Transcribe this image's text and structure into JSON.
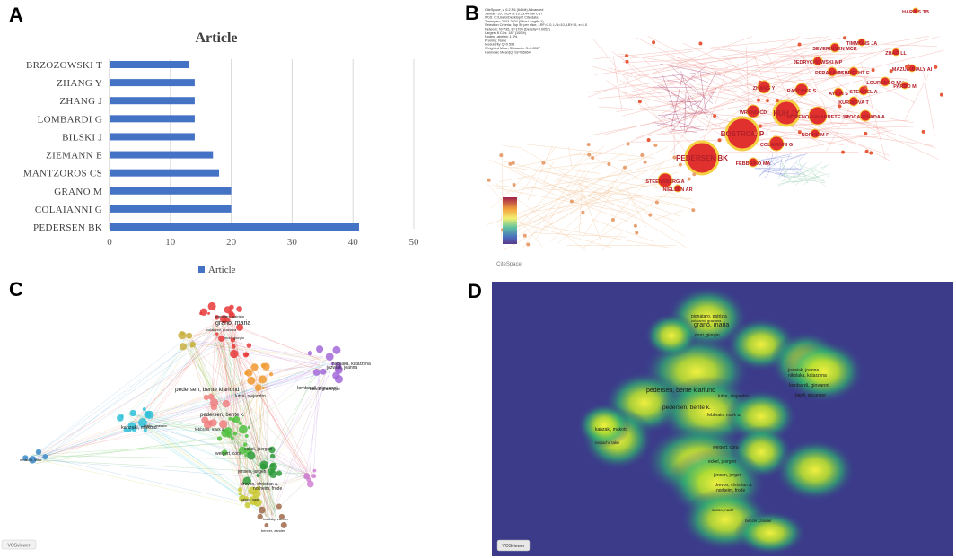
{
  "panels": {
    "a": "A",
    "b": "B",
    "c": "C",
    "d": "D"
  },
  "chart_data": [
    {
      "type": "bar",
      "orientation": "horizontal",
      "title": "Article",
      "categories": [
        "BRZOZOWSKI T",
        "ZHANG Y",
        "ZHANG J",
        "LOMBARDI G",
        "BILSKI J",
        "ZIEMANN E",
        "MANTZOROS CS",
        "GRANO M",
        "COLAIANNI G",
        "PEDERSEN BK"
      ],
      "series": [
        {
          "name": "Article",
          "values": [
            13,
            14,
            14,
            14,
            14,
            17,
            18,
            20,
            20,
            41
          ]
        }
      ],
      "xlim": [
        0,
        50
      ],
      "xticks": [
        0,
        10,
        20,
        30,
        40,
        50
      ],
      "legend": "bottom",
      "bar_color": "#4472c4"
    },
    {
      "type": "network",
      "source": "CiteSpace",
      "header_lines": [
        "CiteSpace, v. 6.2.R6 (64-bit) Advanced",
        "January 20, 2024 at 10:13:44 AM CST",
        "WoS: C:\\Users\\Desktop\\2 Cite\\data",
        "Timespan: 2003-2024 (Slice Length=1)",
        "Selection Criteria: Top 50 per slice, LRF=3.0, L/N=10, LBY=5, e=1.0",
        "Network: N=735, E=1799 (Density=0.0052)",
        "Largest 8 CCs: 187 (100%)",
        "Nodes Labeled: 1.0%",
        "Pruning: None",
        "Modularity Q=0.595",
        "Weighted Mean Silhouette S=0.8927",
        "Harmonic Mean(Q, S)=0.6864"
      ],
      "node_labels": [
        "BOSTROM P",
        "PEDERSEN BK",
        "HUH JY",
        "MORENO-NAVARRETE JM",
        "COLAIANNI G",
        "STEENSBERG A",
        "WRANN CD",
        "ZHANG Y",
        "RAŠCHKE S",
        "NORHEIM F",
        "ROCA-RIVADA A",
        "KURDIOVA T",
        "STENGEL A",
        "LOURENCO MV",
        "SEVERINSEN MCK",
        "JEDRYCHOWSKI MP",
        "PERAKAKIS N",
        "ALBRECHT E",
        "AYDIN S",
        "PARDO M",
        "MAZUR-BIALY AI",
        "FEBBRAIO MA",
        "NIELSEN AR",
        "ZHAO LL",
        "TIMMONS JA",
        "HARRIS TB"
      ],
      "logo": "CiteSpace"
    },
    {
      "type": "network",
      "source": "VOSviewer",
      "node_labels": [
        "grano, maria",
        "pedersen, bente klarlund",
        "pedersen, bente k.",
        "lombardi, giovanni",
        "banfi, giuseppe",
        "kanzaki, makoto",
        "weigert, cora",
        "eckel, juergen",
        "jensen, jorgen",
        "drevon, christian a.",
        "norheim, frode",
        "iwabu, masato",
        "jozwiak, joanna",
        "nikolaka, katarzyna",
        "lutsa, alejandro",
        "febbraio, mark a.",
        "nedachi, taku",
        "pignataro, patrizia",
        "colaianni, graziana",
        "mori, giorgio",
        "sasso, nadir",
        "bardsky, zander",
        "benzer, zander"
      ],
      "logo": "VOSviewer"
    },
    {
      "type": "heatmap",
      "source": "VOSviewer density",
      "node_labels": [
        "grano, maria",
        "pignataro, patrizia",
        "colaianni, graziana",
        "mori, giorgio",
        "pedersen, bente klarlund",
        "pedersen, bente k.",
        "lombardi, giovanni",
        "jozwiak, joanna",
        "nikolaka, katarzyna",
        "banfi, giuseppe",
        "lutsa, alejandro",
        "febbraio, mark a.",
        "kanzaki, makoto",
        "nedachi, taku",
        "weigert, cora",
        "eckel, juergen",
        "jensen, jorgen",
        "drevon, christian a.",
        "norheim, frode",
        "sasso, nadir",
        "benzer, zander"
      ],
      "logo": "VOSviewer"
    }
  ]
}
